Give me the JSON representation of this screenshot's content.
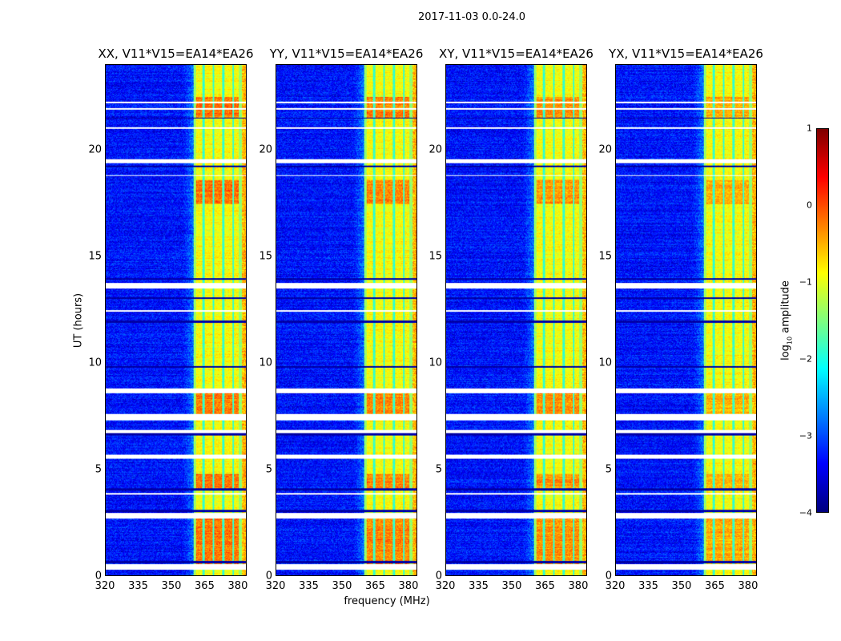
{
  "chart_data": {
    "type": "heatmap",
    "title": "2017-11-03 0.0-24.0",
    "xlabel": "frequency (MHz)",
    "ylabel": "UT (hours)",
    "xlim": [
      320,
      384
    ],
    "ylim": [
      0,
      24
    ],
    "xticks": [
      "320",
      "335",
      "350",
      "365",
      "380"
    ],
    "xtick_values": [
      320,
      335,
      350,
      365,
      380
    ],
    "yticks": [
      "0",
      "5",
      "10",
      "15",
      "20"
    ],
    "ytick_values": [
      0,
      5,
      10,
      15,
      20
    ],
    "panels": [
      {
        "title": "XX, V11*V15=EA14*EA26",
        "hot_scale": 1.0
      },
      {
        "title": "YY, V11*V15=EA14*EA26",
        "hot_scale": 0.9
      },
      {
        "title": "XY, V11*V15=EA14*EA26",
        "hot_scale": 0.8
      },
      {
        "title": "YX, V11*V15=EA14*EA26",
        "hot_scale": 0.6
      }
    ],
    "colorbar": {
      "label_main": "log",
      "label_sub": "10",
      "label_rest": " amplitude",
      "colormap": "jet",
      "range": [
        -4,
        1
      ],
      "ticks": [
        "1",
        "0",
        "−1",
        "−2",
        "−3",
        "−4"
      ],
      "tick_values": [
        1,
        0,
        -1,
        -2,
        -3,
        -4
      ]
    },
    "model": {
      "background_log_amp": -3.3,
      "rfi_band_mhz": [
        360,
        382
      ],
      "rfi_band_log_amp": -0.9,
      "channel_gaps_mhz": [
        364.5,
        369,
        373.5,
        378
      ],
      "hot_intervals_hours": [
        [
          0.5,
          2.7
        ],
        [
          4.0,
          4.8
        ],
        [
          7.4,
          8.6
        ],
        [
          17.5,
          18.6
        ],
        [
          21.5,
          22.5
        ]
      ],
      "flagged_intervals_hours": [
        [
          0.3,
          0.55
        ],
        [
          2.7,
          2.95
        ],
        [
          3.8,
          3.9
        ],
        [
          5.5,
          5.7
        ],
        [
          6.7,
          6.85
        ],
        [
          7.3,
          7.6
        ],
        [
          8.6,
          8.8
        ],
        [
          12.4,
          12.5
        ],
        [
          13.5,
          13.75
        ],
        [
          19.4,
          19.6
        ],
        [
          18.8,
          18.85
        ],
        [
          21.0,
          21.1
        ],
        [
          21.9,
          22.0
        ],
        [
          22.2,
          22.3
        ]
      ],
      "dark_rows_hours": [
        [
          0.6,
          0.68
        ],
        [
          3.0,
          3.08
        ],
        [
          4.0,
          4.1
        ],
        [
          6.6,
          6.7
        ],
        [
          9.8,
          9.85
        ],
        [
          11.9,
          12.0
        ],
        [
          13.0,
          13.1
        ],
        [
          13.9,
          14.0
        ],
        [
          19.2,
          19.3
        ],
        [
          21.5,
          21.55
        ]
      ]
    }
  }
}
